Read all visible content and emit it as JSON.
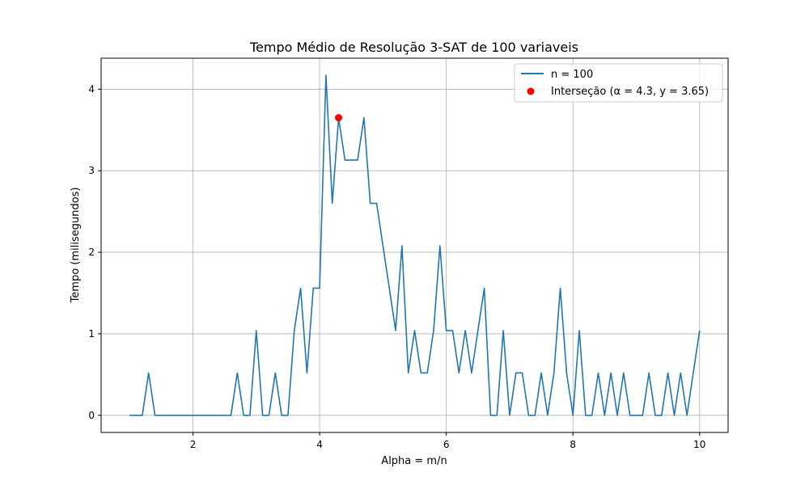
{
  "chart_data": {
    "type": "line",
    "title": "Tempo Médio de Resolução 3-SAT de 100 variaveis",
    "xlabel": "Alpha = m/n",
    "ylabel": "Tempo (milisegundos)",
    "xlim": [
      0.55,
      10.45
    ],
    "ylim": [
      -0.21,
      4.38
    ],
    "xticks": [
      2,
      4,
      6,
      8,
      10
    ],
    "yticks": [
      0,
      1,
      2,
      3,
      4
    ],
    "grid": true,
    "legend_position": "top-right",
    "series": [
      {
        "name": "n = 100",
        "color": "#1f77b4",
        "x": [
          1.0,
          1.1,
          1.2,
          1.3,
          1.4,
          1.5,
          1.6,
          1.7,
          1.8,
          1.9,
          2.0,
          2.1,
          2.2,
          2.3,
          2.4,
          2.5,
          2.6,
          2.7,
          2.8,
          2.9,
          3.0,
          3.1,
          3.2,
          3.3,
          3.4,
          3.5,
          3.6,
          3.7,
          3.8,
          3.9,
          4.0,
          4.1,
          4.2,
          4.3,
          4.4,
          4.5,
          4.6,
          4.7,
          4.8,
          4.9,
          5.0,
          5.1,
          5.2,
          5.3,
          5.4,
          5.5,
          5.6,
          5.7,
          5.8,
          5.9,
          6.0,
          6.1,
          6.2,
          6.3,
          6.4,
          6.5,
          6.6,
          6.7,
          6.8,
          6.9,
          7.0,
          7.1,
          7.2,
          7.3,
          7.4,
          7.5,
          7.6,
          7.7,
          7.8,
          7.9,
          8.0,
          8.1,
          8.2,
          8.3,
          8.4,
          8.5,
          8.6,
          8.7,
          8.8,
          8.9,
          9.0,
          9.1,
          9.2,
          9.3,
          9.4,
          9.5,
          9.6,
          9.7,
          9.8,
          9.9,
          10.0
        ],
        "y": [
          0,
          0,
          0,
          0.52,
          0,
          0,
          0,
          0,
          0,
          0,
          0,
          0,
          0,
          0,
          0,
          0,
          0,
          0.52,
          0,
          0,
          1.04,
          0,
          0,
          0.52,
          0,
          0,
          1.04,
          1.56,
          0.52,
          1.56,
          1.56,
          4.17,
          2.6,
          3.65,
          3.13,
          3.13,
          3.13,
          3.65,
          2.6,
          2.6,
          2.08,
          1.56,
          1.04,
          2.08,
          0.52,
          1.04,
          0.52,
          0.52,
          1.04,
          2.08,
          1.04,
          1.04,
          0.52,
          1.04,
          0.52,
          1.04,
          1.56,
          0,
          0,
          1.04,
          0,
          0.52,
          0.52,
          0,
          0,
          0.52,
          0,
          0.52,
          1.56,
          0.52,
          0,
          1.04,
          0,
          0,
          0.52,
          0,
          0.52,
          0,
          0.52,
          0,
          0,
          0,
          0.52,
          0,
          0,
          0.52,
          0,
          0.52,
          0,
          0.52,
          1.04
        ]
      },
      {
        "name": "Interseção (α = 4.3, y = 3.65)",
        "type": "scatter",
        "color": "#ff0000",
        "x": [
          4.3
        ],
        "y": [
          3.65
        ]
      }
    ]
  }
}
